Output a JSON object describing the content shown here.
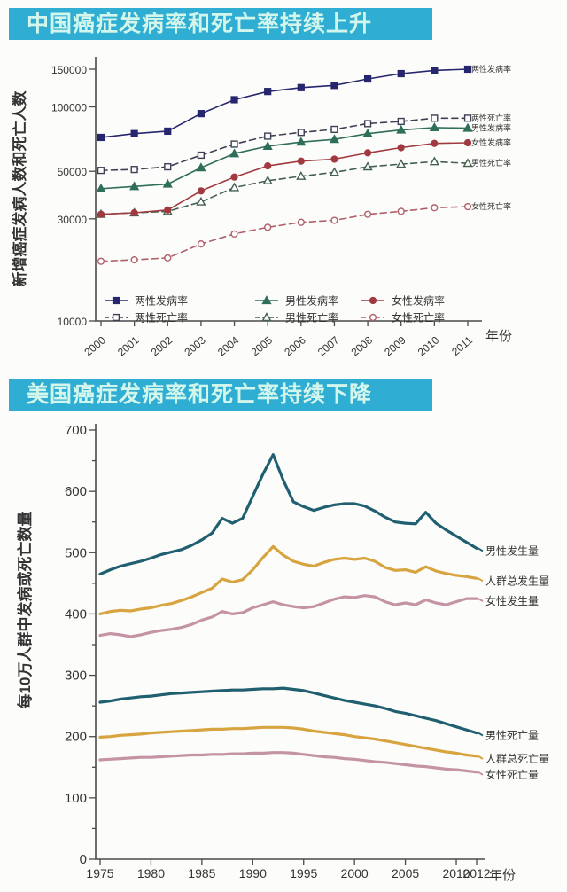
{
  "banners": [
    {
      "text": "中国癌症发病率和死亡率持续上升",
      "bg": "#2fadd2",
      "fg": "#d2f6ec"
    },
    {
      "text": "美国癌症发病率和死亡率持续下降",
      "bg": "#2fadd2",
      "fg": "#d2f6ec"
    }
  ],
  "chart_data": [
    {
      "type": "line",
      "title": "中国癌症发病率和死亡率持续上升",
      "xlabel": "年份",
      "ylabel": "新增癌症发病人数和死亡人数",
      "y_scale": "log",
      "ylim": [
        10000,
        160000
      ],
      "yticks": [
        150000,
        100000,
        50000,
        30000,
        10000
      ],
      "x": [
        2000,
        2001,
        2002,
        2003,
        2004,
        2005,
        2006,
        2007,
        2008,
        2009,
        2010,
        2011
      ],
      "xticks": [
        2000,
        2001,
        2002,
        2003,
        2004,
        2005,
        2006,
        2007,
        2008,
        2009,
        2010,
        2011
      ],
      "grid": false,
      "legend_position": "inside-bottom",
      "series": [
        {
          "name": "两性发病率",
          "color": "#26266e",
          "line": "solid",
          "marker": "square",
          "marker_fill": true,
          "values": [
            72000,
            75000,
            77000,
            93000,
            108000,
            118000,
            123000,
            126000,
            135000,
            143000,
            148000,
            150000
          ]
        },
        {
          "name": "两性死亡率",
          "color": "#3f3f55",
          "line": "dashed",
          "marker": "square",
          "marker_fill": false,
          "values": [
            50500,
            51000,
            52500,
            59500,
            67000,
            73000,
            76000,
            78500,
            83500,
            85500,
            88500,
            88500
          ]
        },
        {
          "name": "男性发病率",
          "color": "#2f6e59",
          "line": "solid",
          "marker": "triangle",
          "marker_fill": true,
          "values": [
            41500,
            42500,
            43600,
            52000,
            60500,
            65500,
            68500,
            70500,
            75000,
            78000,
            80000,
            79500
          ]
        },
        {
          "name": "男性死亡率",
          "color": "#44614f",
          "line": "dashed",
          "marker": "triangle",
          "marker_fill": false,
          "values": [
            31500,
            32000,
            32500,
            36000,
            42000,
            45200,
            47400,
            49500,
            52500,
            54000,
            55500,
            54500
          ]
        },
        {
          "name": "女性发病率",
          "color": "#a03a40",
          "line": "solid",
          "marker": "circle",
          "marker_fill": true,
          "values": [
            31500,
            32000,
            33000,
            40500,
            47000,
            53000,
            55800,
            57000,
            61000,
            64500,
            67500,
            68000
          ]
        },
        {
          "name": "女性死亡率",
          "color": "#b0606a",
          "line": "dashed",
          "marker": "circle",
          "marker_fill": false,
          "values": [
            19000,
            19300,
            19700,
            22900,
            25500,
            27400,
            28900,
            29500,
            31500,
            32500,
            33800,
            34200
          ]
        }
      ]
    },
    {
      "type": "line",
      "title": "美国癌症发病率和死亡率持续下降",
      "xlabel": "年份",
      "ylabel": "每10万人群中发病或死亡数量",
      "y_scale": "linear",
      "ylim": [
        0,
        700
      ],
      "yticks": [
        700,
        600,
        500,
        400,
        300,
        200,
        100,
        0
      ],
      "y_minor_step": 50,
      "x": [
        1975,
        1976,
        1977,
        1978,
        1979,
        1980,
        1981,
        1982,
        1983,
        1984,
        1985,
        1986,
        1987,
        1988,
        1989,
        1990,
        1991,
        1992,
        1993,
        1994,
        1995,
        1996,
        1997,
        1998,
        1999,
        2000,
        2001,
        2002,
        2003,
        2004,
        2005,
        2006,
        2007,
        2008,
        2009,
        2010,
        2011,
        2012
      ],
      "xticks": [
        1975,
        1980,
        1985,
        1990,
        1995,
        2000,
        2005,
        2010,
        2012
      ],
      "grid": false,
      "legend_position": "right-end-labels",
      "series": [
        {
          "name": "男性发生量",
          "color": "#1f5f70",
          "line": "solid",
          "marker": "none",
          "values": [
            465,
            472,
            478,
            482,
            486,
            491,
            497,
            501,
            505,
            512,
            521,
            532,
            556,
            548,
            556,
            592,
            628,
            660,
            618,
            583,
            575,
            569,
            574,
            578,
            580,
            580,
            576,
            568,
            558,
            550,
            548,
            547,
            566,
            548,
            537,
            527,
            517,
            507
          ]
        },
        {
          "name": "人群总发生量",
          "color": "#d7a440",
          "line": "solid",
          "marker": "none",
          "values": [
            400,
            404,
            406,
            405,
            408,
            410,
            414,
            417,
            422,
            428,
            435,
            442,
            457,
            452,
            456,
            472,
            492,
            510,
            496,
            486,
            481,
            478,
            484,
            489,
            491,
            489,
            491,
            486,
            476,
            471,
            472,
            468,
            477,
            470,
            466,
            463,
            461,
            458
          ]
        },
        {
          "name": "女性发生量",
          "color": "#c494a4",
          "line": "solid",
          "marker": "none",
          "values": [
            365,
            368,
            366,
            363,
            366,
            370,
            373,
            375,
            378,
            383,
            390,
            395,
            404,
            400,
            402,
            410,
            415,
            420,
            415,
            412,
            410,
            412,
            418,
            424,
            428,
            427,
            430,
            428,
            420,
            415,
            418,
            415,
            423,
            418,
            415,
            420,
            425,
            425
          ]
        },
        {
          "name": "男性死亡量",
          "color": "#1f5f70",
          "line": "solid",
          "marker": "none",
          "values": [
            256,
            258,
            261,
            263,
            265,
            266,
            268,
            270,
            271,
            272,
            273,
            274,
            275,
            276,
            276,
            277,
            278,
            278,
            279,
            277,
            275,
            271,
            267,
            263,
            259,
            256,
            253,
            250,
            246,
            241,
            238,
            234,
            230,
            226,
            221,
            216,
            211,
            206
          ]
        },
        {
          "name": "人群总死亡量",
          "color": "#d7a440",
          "line": "solid",
          "marker": "none",
          "values": [
            199,
            200,
            202,
            203,
            204,
            206,
            207,
            208,
            209,
            210,
            211,
            212,
            212,
            213,
            213,
            214,
            215,
            215,
            215,
            214,
            212,
            209,
            207,
            205,
            203,
            200,
            198,
            196,
            193,
            190,
            187,
            184,
            181,
            178,
            175,
            173,
            170,
            168
          ]
        },
        {
          "name": "女性死亡量",
          "color": "#c494a4",
          "line": "solid",
          "marker": "none",
          "values": [
            162,
            163,
            164,
            165,
            166,
            166,
            167,
            168,
            169,
            170,
            170,
            171,
            171,
            172,
            172,
            173,
            173,
            174,
            174,
            173,
            171,
            169,
            167,
            166,
            164,
            163,
            161,
            159,
            158,
            156,
            154,
            152,
            151,
            149,
            147,
            146,
            144,
            142
          ]
        }
      ]
    }
  ]
}
